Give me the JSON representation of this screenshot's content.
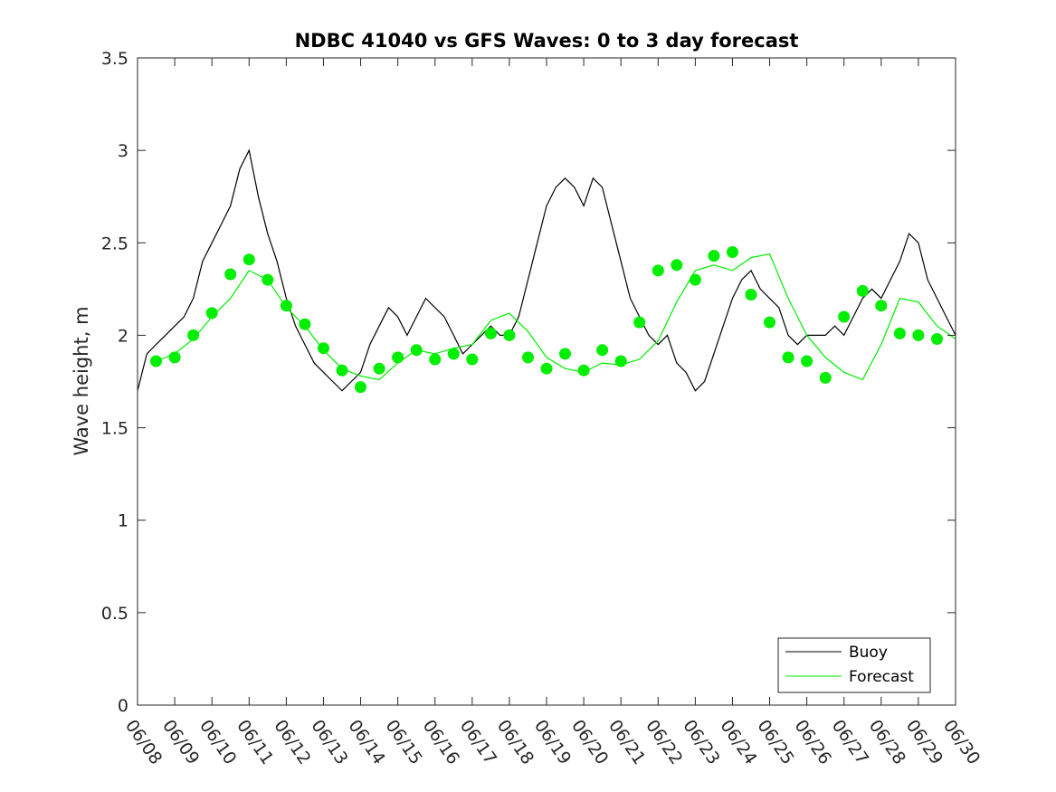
{
  "chart_data": {
    "type": "line",
    "title": "NDBC 41040 vs GFS Waves: 0 to 3 day forecast",
    "ylabel": "Wave height, m",
    "xlabel": "",
    "x_axis_kind": "date",
    "x_domain_days": [
      0,
      22
    ],
    "ylim": [
      0,
      3.5
    ],
    "yticks": [
      0,
      0.5,
      1,
      1.5,
      2,
      2.5,
      3,
      3.5
    ],
    "ytick_labels": [
      "0",
      "0.5",
      "1",
      "1.5",
      "2",
      "2.5",
      "3",
      "3.5"
    ],
    "xtick_labels": [
      "06/08",
      "06/09",
      "06/10",
      "06/11",
      "06/12",
      "06/13",
      "06/14",
      "06/15",
      "06/16",
      "06/17",
      "06/18",
      "06/19",
      "06/20",
      "06/21",
      "06/22",
      "06/23",
      "06/24",
      "06/25",
      "06/26",
      "06/27",
      "06/28",
      "06/29",
      "06/30"
    ],
    "grid": false,
    "legend_position": "bottom-right",
    "colors": {
      "buoy": "#000000",
      "forecast": "#00ee00"
    },
    "series": [
      {
        "name": "Buoy",
        "kind": "line",
        "color": "#000000",
        "x": [
          0,
          0.25,
          0.5,
          0.75,
          1,
          1.25,
          1.5,
          1.75,
          2,
          2.25,
          2.5,
          2.75,
          3,
          3.25,
          3.5,
          3.75,
          4,
          4.25,
          4.5,
          4.75,
          5,
          5.25,
          5.5,
          5.75,
          6,
          6.25,
          6.5,
          6.75,
          7,
          7.25,
          7.5,
          7.75,
          8,
          8.25,
          8.5,
          8.75,
          9,
          9.25,
          9.5,
          9.75,
          10,
          10.25,
          10.5,
          10.75,
          11,
          11.25,
          11.5,
          11.75,
          12,
          12.25,
          12.5,
          12.75,
          13,
          13.25,
          13.5,
          13.75,
          14,
          14.25,
          14.5,
          14.75,
          15,
          15.25,
          15.5,
          15.75,
          16,
          16.25,
          16.5,
          16.75,
          17,
          17.25,
          17.5,
          17.75,
          18,
          18.25,
          18.5,
          18.75,
          19,
          19.25,
          19.5,
          19.75,
          20,
          20.25,
          20.5,
          20.75,
          21,
          21.25,
          21.5,
          21.75,
          22
        ],
        "y": [
          1.7,
          1.9,
          1.95,
          2.0,
          2.05,
          2.1,
          2.2,
          2.4,
          2.5,
          2.6,
          2.7,
          2.9,
          3.0,
          2.75,
          2.55,
          2.4,
          2.2,
          2.05,
          1.95,
          1.85,
          1.8,
          1.75,
          1.7,
          1.75,
          1.8,
          1.95,
          2.05,
          2.15,
          2.1,
          2.0,
          2.1,
          2.2,
          2.15,
          2.1,
          2.0,
          1.9,
          1.95,
          2.0,
          2.05,
          2.0,
          2.0,
          2.1,
          2.3,
          2.5,
          2.7,
          2.8,
          2.85,
          2.8,
          2.7,
          2.85,
          2.8,
          2.6,
          2.4,
          2.2,
          2.1,
          2.0,
          1.95,
          2.0,
          1.85,
          1.8,
          1.7,
          1.75,
          1.9,
          2.05,
          2.2,
          2.3,
          2.35,
          2.25,
          2.2,
          2.15,
          2.0,
          1.95,
          2.0,
          2.0,
          2.0,
          2.05,
          2.0,
          2.1,
          2.2,
          2.25,
          2.2,
          2.3,
          2.4,
          2.55,
          2.5,
          2.3,
          2.2,
          2.1,
          2.0
        ]
      },
      {
        "name": "Forecast",
        "kind": "line",
        "color": "#00ee00",
        "x": [
          0.5,
          1,
          1.5,
          2,
          2.5,
          3,
          3.5,
          4,
          4.5,
          5,
          5.5,
          6,
          6.5,
          7,
          7.5,
          8,
          8.5,
          9,
          9.5,
          10,
          10.5,
          11,
          11.5,
          12,
          12.5,
          13,
          13.5,
          14,
          14.5,
          15,
          15.5,
          16,
          16.5,
          17,
          17.5,
          18,
          18.5,
          19,
          19.5,
          20,
          20.5,
          21,
          21.5,
          22
        ],
        "y": [
          1.86,
          1.9,
          1.98,
          2.1,
          2.2,
          2.35,
          2.3,
          2.15,
          2.05,
          1.92,
          1.82,
          1.78,
          1.76,
          1.85,
          1.92,
          1.9,
          1.93,
          1.95,
          2.08,
          2.12,
          2.02,
          1.88,
          1.82,
          1.8,
          1.85,
          1.84,
          1.87,
          1.97,
          2.18,
          2.35,
          2.38,
          2.35,
          2.42,
          2.44,
          2.2,
          2.0,
          1.88,
          1.8,
          1.76,
          1.95,
          2.2,
          2.18,
          2.05,
          1.98
        ]
      }
    ],
    "markers": {
      "name": "Forecast",
      "kind": "points",
      "color": "#00ee00",
      "x": [
        0.5,
        1,
        1.5,
        2,
        2.5,
        3,
        3.5,
        4,
        4.5,
        5,
        5.5,
        6,
        6.5,
        7,
        7.5,
        8,
        8.5,
        9,
        9.5,
        10,
        10.5,
        11,
        11.5,
        12,
        12.5,
        13,
        13.5,
        14,
        14.5,
        15,
        15.5,
        16,
        16.5,
        17,
        17.5,
        18,
        18.5,
        19,
        19.5,
        20,
        20.5,
        21,
        21.5
      ],
      "y": [
        1.86,
        1.88,
        2.0,
        2.12,
        2.33,
        2.41,
        2.3,
        2.16,
        2.06,
        1.93,
        1.81,
        1.72,
        1.82,
        1.88,
        1.92,
        1.87,
        1.9,
        1.87,
        2.01,
        2.0,
        1.88,
        1.82,
        1.9,
        1.81,
        1.92,
        1.86,
        2.07,
        2.35,
        2.38,
        2.3,
        2.43,
        2.45,
        2.22,
        2.07,
        1.88,
        1.86,
        1.77,
        2.1,
        2.24,
        2.16,
        2.01,
        2.0,
        1.98
      ]
    },
    "legend": {
      "entries": [
        "Buoy",
        "Forecast"
      ]
    }
  }
}
